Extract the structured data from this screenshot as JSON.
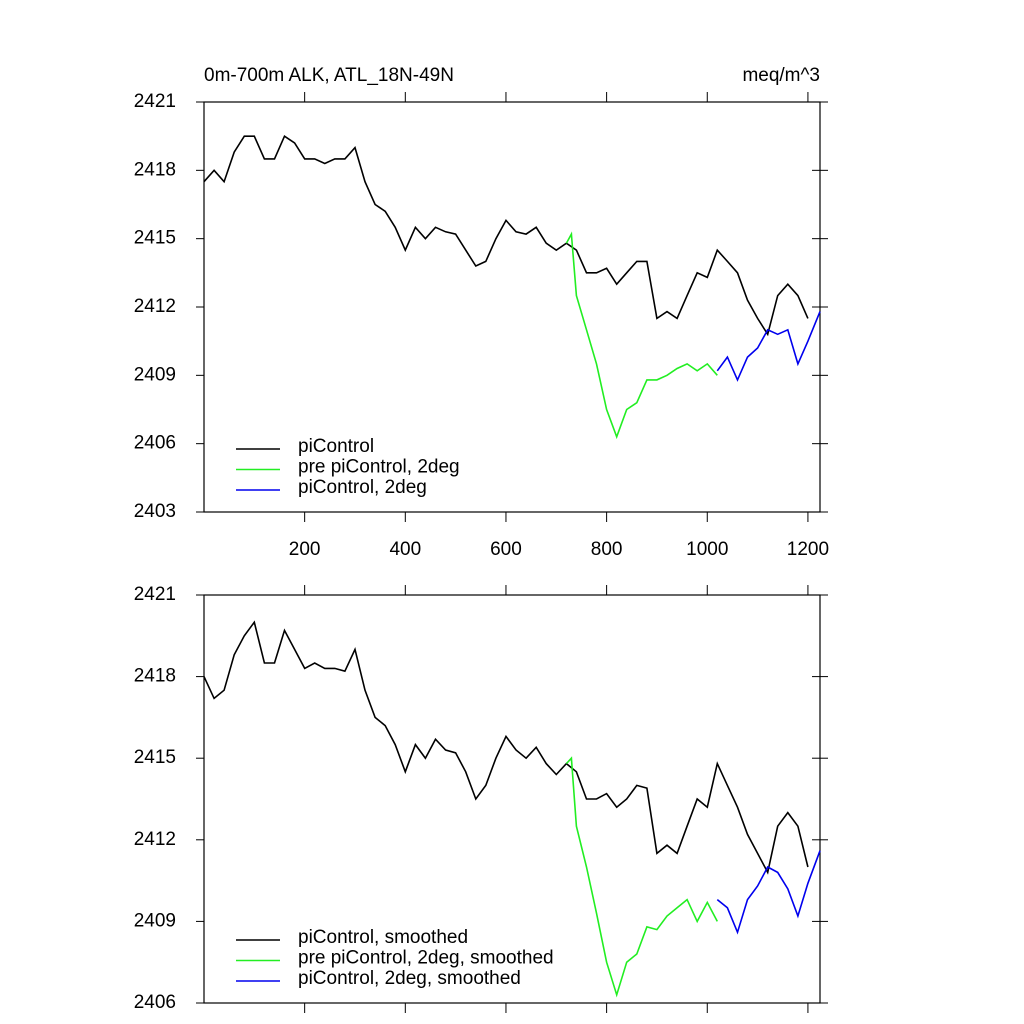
{
  "chart_data": [
    {
      "type": "line",
      "title": "0m-700m ALK, ATL_18N-49N",
      "units": "meq/m^3",
      "xlim": [
        0,
        1224
      ],
      "ylim": [
        2403,
        2421
      ],
      "xticks": [
        200,
        400,
        600,
        800,
        1000,
        1200
      ],
      "yticks": [
        2403,
        2406,
        2409,
        2412,
        2415,
        2418,
        2421
      ],
      "show_xtick_labels": true,
      "legend": "lower left",
      "series": [
        {
          "name": "piControl",
          "color": "#000000",
          "x": [
            0,
            20,
            40,
            60,
            80,
            100,
            120,
            140,
            160,
            180,
            200,
            220,
            240,
            260,
            280,
            300,
            320,
            340,
            360,
            380,
            400,
            420,
            440,
            460,
            480,
            500,
            520,
            540,
            560,
            580,
            600,
            620,
            640,
            660,
            680,
            700,
            720,
            740,
            760,
            780,
            800,
            820,
            840,
            860,
            880,
            900,
            920,
            940,
            960,
            980,
            1000,
            1020,
            1040,
            1060,
            1080,
            1100,
            1120,
            1140,
            1160,
            1180,
            1200
          ],
          "values": [
            2417.5,
            2418,
            2417.5,
            2418.8,
            2419.5,
            2419.5,
            2418.5,
            2418.5,
            2419.5,
            2419.2,
            2418.5,
            2418.5,
            2418.3,
            2418.5,
            2418.5,
            2419,
            2417.5,
            2416.5,
            2416.2,
            2415.5,
            2414.5,
            2415.5,
            2415,
            2415.5,
            2415.3,
            2415.2,
            2414.5,
            2413.8,
            2414,
            2415,
            2415.8,
            2415.3,
            2415.2,
            2415.5,
            2414.8,
            2414.5,
            2414.8,
            2414.5,
            2413.5,
            2413.5,
            2413.7,
            2413,
            2413.5,
            2414,
            2414,
            2411.5,
            2411.8,
            2411.5,
            2412.5,
            2413.5,
            2413.3,
            2414.5,
            2414,
            2413.5,
            2412.3,
            2411.5,
            2410.8,
            2412.5,
            2413,
            2412.5,
            2411.5
          ]
        },
        {
          "name": "pre piControl, 2deg",
          "color": "#22ee22",
          "x": [
            720,
            730,
            740,
            760,
            780,
            800,
            820,
            840,
            860,
            880,
            900,
            920,
            940,
            960,
            980,
            1000,
            1020
          ],
          "values": [
            2414.8,
            2415.2,
            2412.5,
            2411,
            2409.5,
            2407.5,
            2406.3,
            2407.5,
            2407.8,
            2408.8,
            2408.8,
            2409,
            2409.3,
            2409.5,
            2409.2,
            2409.5,
            2409
          ]
        },
        {
          "name": "piControl, 2deg",
          "color": "#0000ee",
          "x": [
            1020,
            1040,
            1060,
            1080,
            1100,
            1120,
            1140,
            1160,
            1180,
            1200,
            1224
          ],
          "values": [
            2409.2,
            2409.8,
            2408.8,
            2409.8,
            2410.2,
            2411,
            2410.8,
            2411,
            2409.5,
            2410.5,
            2411.8
          ]
        }
      ]
    },
    {
      "type": "line",
      "xlim": [
        0,
        1224
      ],
      "ylim": [
        2406,
        2421
      ],
      "xticks": [
        200,
        400,
        600,
        800,
        1000,
        1200
      ],
      "yticks": [
        2406,
        2409,
        2412,
        2415,
        2418,
        2421
      ],
      "show_xtick_labels": false,
      "legend": "lower left",
      "series": [
        {
          "name": "piControl, smoothed",
          "color": "#000000",
          "x": [
            0,
            20,
            40,
            60,
            80,
            100,
            120,
            140,
            160,
            180,
            200,
            220,
            240,
            260,
            280,
            300,
            320,
            340,
            360,
            380,
            400,
            420,
            440,
            460,
            480,
            500,
            520,
            540,
            560,
            580,
            600,
            620,
            640,
            660,
            680,
            700,
            720,
            740,
            760,
            780,
            800,
            820,
            840,
            860,
            880,
            900,
            920,
            940,
            960,
            980,
            1000,
            1020,
            1040,
            1060,
            1080,
            1100,
            1120,
            1140,
            1160,
            1180,
            1200
          ],
          "values": [
            2418,
            2417.2,
            2417.5,
            2418.8,
            2419.5,
            2420,
            2418.5,
            2418.5,
            2419.7,
            2419,
            2418.3,
            2418.5,
            2418.3,
            2418.3,
            2418.2,
            2419,
            2417.5,
            2416.5,
            2416.2,
            2415.5,
            2414.5,
            2415.5,
            2415,
            2415.7,
            2415.3,
            2415.2,
            2414.5,
            2413.5,
            2414,
            2415,
            2415.8,
            2415.3,
            2415,
            2415.4,
            2414.8,
            2414.4,
            2414.8,
            2414.5,
            2413.5,
            2413.5,
            2413.7,
            2413.2,
            2413.5,
            2414,
            2413.9,
            2411.5,
            2411.8,
            2411.5,
            2412.5,
            2413.5,
            2413.2,
            2414.8,
            2414,
            2413.2,
            2412.2,
            2411.5,
            2410.8,
            2412.5,
            2413,
            2412.5,
            2411
          ]
        },
        {
          "name": "pre piControl, 2deg, smoothed",
          "color": "#22ee22",
          "x": [
            720,
            730,
            740,
            760,
            780,
            800,
            820,
            840,
            860,
            880,
            900,
            920,
            940,
            960,
            980,
            1000,
            1020
          ],
          "values": [
            2414.8,
            2415,
            2412.5,
            2411,
            2409.3,
            2407.5,
            2406.3,
            2407.5,
            2407.8,
            2408.8,
            2408.7,
            2409.2,
            2409.5,
            2409.8,
            2409,
            2409.7,
            2409
          ]
        },
        {
          "name": "piControl, 2deg, smoothed",
          "color": "#0000ee",
          "x": [
            1020,
            1040,
            1060,
            1080,
            1100,
            1120,
            1140,
            1160,
            1180,
            1200,
            1224
          ],
          "values": [
            2409.8,
            2409.5,
            2408.6,
            2409.8,
            2410.3,
            2411,
            2410.8,
            2410.2,
            2409.2,
            2410.4,
            2411.6
          ]
        }
      ]
    }
  ]
}
